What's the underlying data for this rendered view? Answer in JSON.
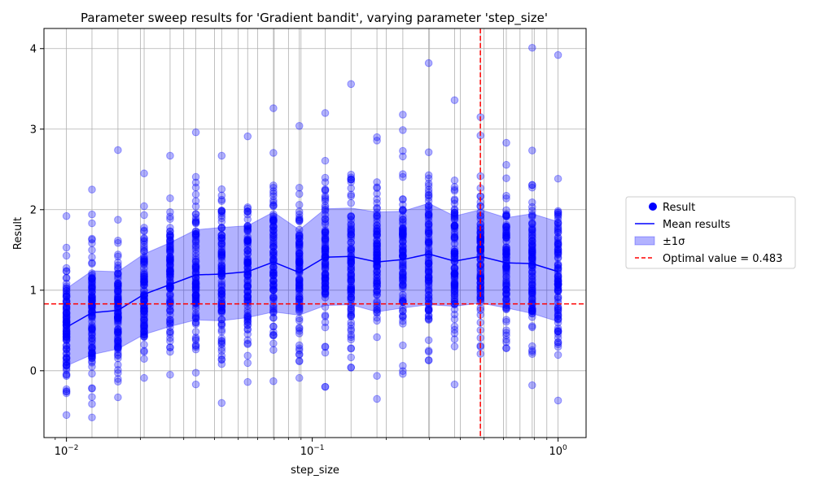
{
  "chart_data": {
    "type": "scatter",
    "title": "Parameter sweep results for 'Gradient bandit', varying parameter 'step_size'",
    "xlabel": "step_size",
    "ylabel": "Result",
    "xscale": "log",
    "xlim": [
      0.0081,
      1.3
    ],
    "ylim": [
      -0.83,
      4.25
    ],
    "grid": true,
    "x_tick_labels": [
      {
        "value": 0.01,
        "base": "10",
        "exp": "−2"
      },
      {
        "value": 0.1,
        "base": "10",
        "exp": "−1"
      },
      {
        "value": 1.0,
        "base": "10",
        "exp": "0"
      }
    ],
    "y_ticks": [
      0,
      1,
      2,
      3,
      4
    ],
    "x": [
      0.01,
      0.0127,
      0.0162,
      0.0207,
      0.0264,
      0.0336,
      0.0428,
      0.0546,
      0.0695,
      0.0886,
      0.1129,
      0.1438,
      0.1833,
      0.2336,
      0.2976,
      0.3793,
      0.4833,
      0.6158,
      0.7848,
      1.0
    ],
    "mean": [
      0.54,
      0.72,
      0.75,
      0.95,
      1.07,
      1.19,
      1.2,
      1.23,
      1.35,
      1.22,
      1.41,
      1.42,
      1.35,
      1.38,
      1.45,
      1.36,
      1.42,
      1.34,
      1.33,
      1.23
    ],
    "std": [
      0.48,
      0.52,
      0.48,
      0.5,
      0.52,
      0.56,
      0.58,
      0.57,
      0.62,
      0.53,
      0.6,
      0.6,
      0.62,
      0.6,
      0.63,
      0.56,
      0.58,
      0.56,
      0.62,
      0.62
    ],
    "mins": [
      -0.55,
      -0.58,
      -0.33,
      -0.09,
      -0.05,
      -0.17,
      -0.4,
      -0.14,
      -0.13,
      -0.09,
      -0.2,
      0.04,
      -0.35,
      -0.04,
      0.13,
      -0.17,
      0.21,
      0.28,
      -0.18,
      -0.37
    ],
    "maxs": [
      1.92,
      2.25,
      2.74,
      2.45,
      2.67,
      2.96,
      2.67,
      2.91,
      3.26,
      3.04,
      3.2,
      3.56,
      2.9,
      3.18,
      3.82,
      3.36,
      3.15,
      2.83,
      4.01,
      3.92
    ],
    "samples_per_value": 100,
    "optimal": {
      "x": 0.483,
      "y": 0.83
    },
    "colors": {
      "points": "#0000ff",
      "mean": "#0000ff",
      "band": "#0000ff",
      "optimal": "#ff0000"
    },
    "legend": {
      "position": "center-right",
      "items": [
        {
          "label": "Result",
          "kind": "marker"
        },
        {
          "label": "Mean results",
          "kind": "line"
        },
        {
          "label": "±1σ",
          "kind": "patch"
        },
        {
          "label": "Optimal value = 0.483",
          "kind": "dashed"
        }
      ]
    }
  }
}
